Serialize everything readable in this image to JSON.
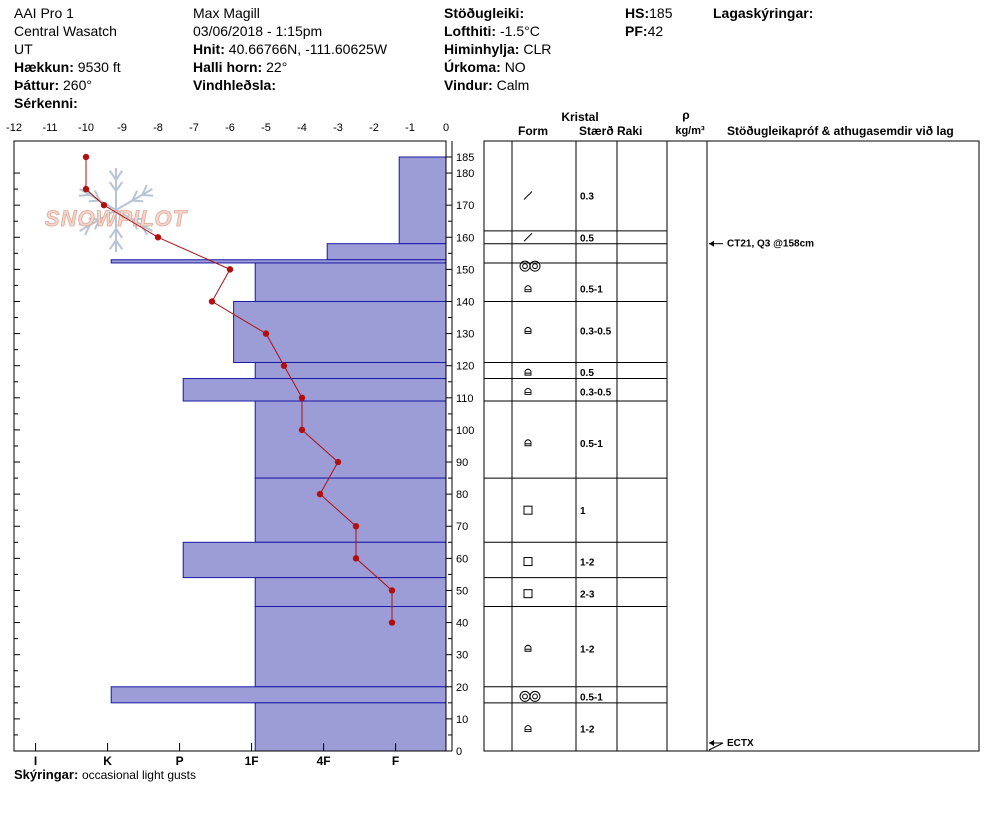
{
  "header": {
    "col1": [
      "AAI Pro 1",
      "Central Wasatch",
      "UT"
    ],
    "elevation_label": "Hækkun:",
    "elevation_value": "9530 ft",
    "aspect_label": "Þáttur:",
    "aspect_value": "260°",
    "features_label": "Sérkenni:",
    "features_value": "",
    "observer": "Max Magill",
    "datetime": "03/06/2018 - 1:15pm",
    "coords_label": "Hnit:",
    "coords_value": "40.66766N, -111.60625W",
    "slope_label": "Halli horn:",
    "slope_value": "22°",
    "wind_loading_label": "Vindhleðsla:",
    "wind_loading_value": "",
    "stability_label": "Stöðugleiki:",
    "stability_value": "",
    "air_temp_label": "Lofthiti:",
    "air_temp_value": "-1.5°C",
    "sky_label": "Himinhylja:",
    "sky_value": "CLR",
    "precip_label": "Úrkoma:",
    "precip_value": "NO",
    "wind_label": "Vindur:",
    "wind_value": "Calm",
    "hs_label": "HS:",
    "hs_value": "185",
    "pf_label": "PF:",
    "pf_value": "42",
    "layer_notes_label": "Lagaskýringar:"
  },
  "footer": {
    "comments_label": "Skýringar:",
    "comments_value": "occasional light gusts"
  },
  "watermark": "SNOWPILOT",
  "table_headers": {
    "crystal": "Kristal",
    "form": "Form",
    "size": "Stærð",
    "moisture": "Raki",
    "rho": "ρ",
    "density_unit": "kg/m³",
    "tests": "Stöðugleikapróf & athugasemdir við lag"
  },
  "chart_data": {
    "type": "snow-profile",
    "temp_axis": {
      "ticks": [
        -12,
        -11,
        -10,
        -9,
        -8,
        -7,
        -6,
        -5,
        -4,
        -3,
        -2,
        -1,
        0
      ],
      "min": -12,
      "max": 0
    },
    "depth_axis": {
      "ticks": [
        0,
        10,
        20,
        30,
        40,
        50,
        60,
        70,
        80,
        90,
        100,
        110,
        120,
        130,
        140,
        150,
        160,
        170,
        180,
        185
      ],
      "min": 0,
      "max": 185
    },
    "hardness_scale": [
      "I",
      "K",
      "P",
      "1F",
      "4F",
      "F"
    ],
    "hardness_layers": [
      {
        "top": 185,
        "bottom": 158,
        "temp_equiv": -1.3
      },
      {
        "top": 158,
        "bottom": 153,
        "temp_equiv": -3.3
      },
      {
        "top": 153,
        "bottom": 152,
        "temp_equiv": -9.3
      },
      {
        "top": 152,
        "bottom": 140,
        "temp_equiv": -5.3
      },
      {
        "top": 140,
        "bottom": 121,
        "temp_equiv": -5.9
      },
      {
        "top": 121,
        "bottom": 116,
        "temp_equiv": -5.3
      },
      {
        "top": 116,
        "bottom": 109,
        "temp_equiv": -7.3
      },
      {
        "top": 109,
        "bottom": 85,
        "temp_equiv": -5.3
      },
      {
        "top": 85,
        "bottom": 65,
        "temp_equiv": -5.3
      },
      {
        "top": 65,
        "bottom": 54,
        "temp_equiv": -7.3
      },
      {
        "top": 54,
        "bottom": 45,
        "temp_equiv": -5.3
      },
      {
        "top": 45,
        "bottom": 20,
        "temp_equiv": -5.3
      },
      {
        "top": 20,
        "bottom": 15,
        "temp_equiv": -9.3
      },
      {
        "top": 15,
        "bottom": 0,
        "temp_equiv": -5.3
      }
    ],
    "temperature_profile": [
      {
        "depth": 185,
        "temp": -10
      },
      {
        "depth": 175,
        "temp": -10
      },
      {
        "depth": 170,
        "temp": -9.5
      },
      {
        "depth": 160,
        "temp": -8
      },
      {
        "depth": 150,
        "temp": -6
      },
      {
        "depth": 140,
        "temp": -6.5
      },
      {
        "depth": 130,
        "temp": -5
      },
      {
        "depth": 120,
        "temp": -4.5
      },
      {
        "depth": 110,
        "temp": -4
      },
      {
        "depth": 100,
        "temp": -4
      },
      {
        "depth": 90,
        "temp": -3
      },
      {
        "depth": 80,
        "temp": -3.5
      },
      {
        "depth": 70,
        "temp": -2.5
      },
      {
        "depth": 60,
        "temp": -2.5
      },
      {
        "depth": 50,
        "temp": -1.5
      },
      {
        "depth": 40,
        "temp": -1.5
      }
    ],
    "layer_rows": [
      {
        "top": 185,
        "bottom": 162,
        "label_depth": 173,
        "form": "slash",
        "size": "0.3"
      },
      {
        "top": 162,
        "bottom": 158,
        "label_depth": 160,
        "form": "slash",
        "size": "0.5"
      },
      {
        "top": 158,
        "bottom": 152,
        "label_depth": 151,
        "form": "double-circle",
        "size": ""
      },
      {
        "top": 152,
        "bottom": 140,
        "label_depth": 144,
        "form": "cup",
        "size": "0.5-1"
      },
      {
        "top": 140,
        "bottom": 121,
        "label_depth": 131,
        "form": "cup",
        "size": "0.3-0.5"
      },
      {
        "top": 121,
        "bottom": 116,
        "label_depth": 118,
        "form": "cup",
        "size": "0.5"
      },
      {
        "top": 116,
        "bottom": 109,
        "label_depth": 112,
        "form": "cup",
        "size": "0.3-0.5"
      },
      {
        "top": 109,
        "bottom": 85,
        "label_depth": 96,
        "form": "cup",
        "size": "0.5-1"
      },
      {
        "top": 85,
        "bottom": 65,
        "label_depth": 75,
        "form": "square",
        "size": "1"
      },
      {
        "top": 65,
        "bottom": 54,
        "label_depth": 59,
        "form": "square",
        "size": "1-2"
      },
      {
        "top": 54,
        "bottom": 45,
        "label_depth": 49,
        "form": "square",
        "size": "2-3"
      },
      {
        "top": 45,
        "bottom": 20,
        "label_depth": 32,
        "form": "cup",
        "size": "1-2"
      },
      {
        "top": 20,
        "bottom": 15,
        "label_depth": 17,
        "form": "double-circle",
        "size": "0.5-1"
      },
      {
        "top": 15,
        "bottom": 0,
        "label_depth": 7,
        "form": "cup",
        "size": "1-2"
      }
    ],
    "tests": [
      {
        "depth": 158,
        "text": "CT21, Q3 @158cm"
      },
      {
        "depth": 0,
        "text": "ECTX"
      }
    ]
  }
}
